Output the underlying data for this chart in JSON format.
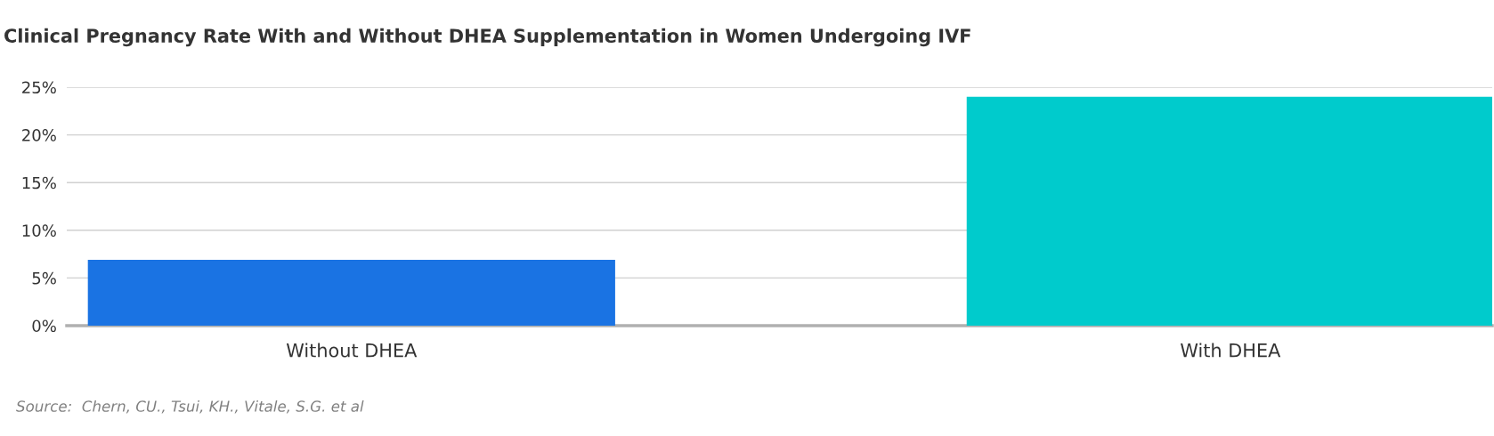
{
  "chart_data": {
    "type": "bar",
    "title": "Clinical Pregnancy Rate With and Without DHEA Supplementation in Women Undergoing IVF",
    "categories": [
      "Without DHEA",
      "With DHEA"
    ],
    "series": [
      {
        "colors": [
          "#1a73e3",
          "#00cbcc"
        ],
        "values": [
          6.9,
          24
        ]
      }
    ],
    "ylim": [
      0,
      25
    ],
    "yticks": [
      {
        "value": 0,
        "label": "0%"
      },
      {
        "value": 5,
        "label": "5%"
      },
      {
        "value": 10,
        "label": "10%"
      },
      {
        "value": 15,
        "label": "15%"
      },
      {
        "value": 20,
        "label": "20%"
      },
      {
        "value": 25,
        "label": "25%"
      }
    ],
    "grid": "y",
    "legend": false,
    "annotations": [
      "Source:  Chern, CU., Tsui, KH., Vitale, S.G. et al"
    ]
  }
}
